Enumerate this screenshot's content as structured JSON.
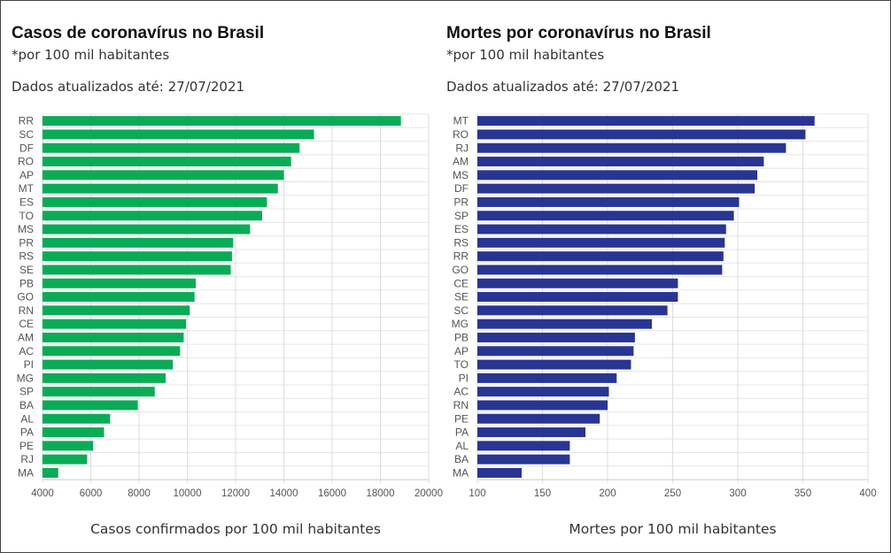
{
  "chart_data": [
    {
      "type": "bar",
      "orientation": "horizontal",
      "title": "Casos de coronavírus no Brasil",
      "subtitle": "*por 100 mil habitantes",
      "updated": "Dados atualizados até: 27/07/2021",
      "xlabel": "Casos confirmados por 100 mil habitantes",
      "ylabel": "",
      "color": "#0aab57",
      "xlim": [
        4000,
        20000
      ],
      "ticks": [
        4000,
        6000,
        8000,
        10000,
        12000,
        14000,
        16000,
        18000,
        20000
      ],
      "grid": true,
      "categories": [
        "RR",
        "SC",
        "DF",
        "RO",
        "AP",
        "MT",
        "ES",
        "TO",
        "MS",
        "PR",
        "RS",
        "SE",
        "PB",
        "GO",
        "RN",
        "CE",
        "AM",
        "AC",
        "PI",
        "MG",
        "SP",
        "BA",
        "AL",
        "PA",
        "PE",
        "RJ",
        "MA"
      ],
      "values": [
        18850,
        15250,
        14650,
        14300,
        14000,
        13750,
        13300,
        13100,
        12600,
        11900,
        11850,
        11800,
        10350,
        10300,
        10100,
        9950,
        9850,
        9700,
        9400,
        9100,
        8650,
        7950,
        6800,
        6550,
        6100,
        5850,
        4650
      ]
    },
    {
      "type": "bar",
      "orientation": "horizontal",
      "title": "Mortes por coronavírus no Brasil",
      "subtitle": "*por 100 mil habitantes",
      "updated": "Dados atualizados até: 27/07/2021",
      "xlabel": "Mortes por 100 mil habitantes",
      "ylabel": "",
      "color": "#283593",
      "xlim": [
        100,
        400
      ],
      "ticks": [
        100,
        150,
        200,
        250,
        300,
        350,
        400
      ],
      "grid": true,
      "categories": [
        "MT",
        "RO",
        "RJ",
        "AM",
        "MS",
        "DF",
        "PR",
        "SP",
        "ES",
        "RS",
        "RR",
        "GO",
        "CE",
        "SE",
        "SC",
        "MG",
        "PB",
        "AP",
        "TO",
        "PI",
        "AC",
        "RN",
        "PE",
        "PA",
        "AL",
        "BA",
        "MA"
      ],
      "values": [
        359,
        352,
        337,
        320,
        315,
        313,
        301,
        297,
        291,
        290,
        289,
        288,
        254,
        254,
        246,
        234,
        221,
        220,
        218,
        207,
        201,
        200,
        194,
        183,
        171,
        171,
        134
      ]
    }
  ]
}
